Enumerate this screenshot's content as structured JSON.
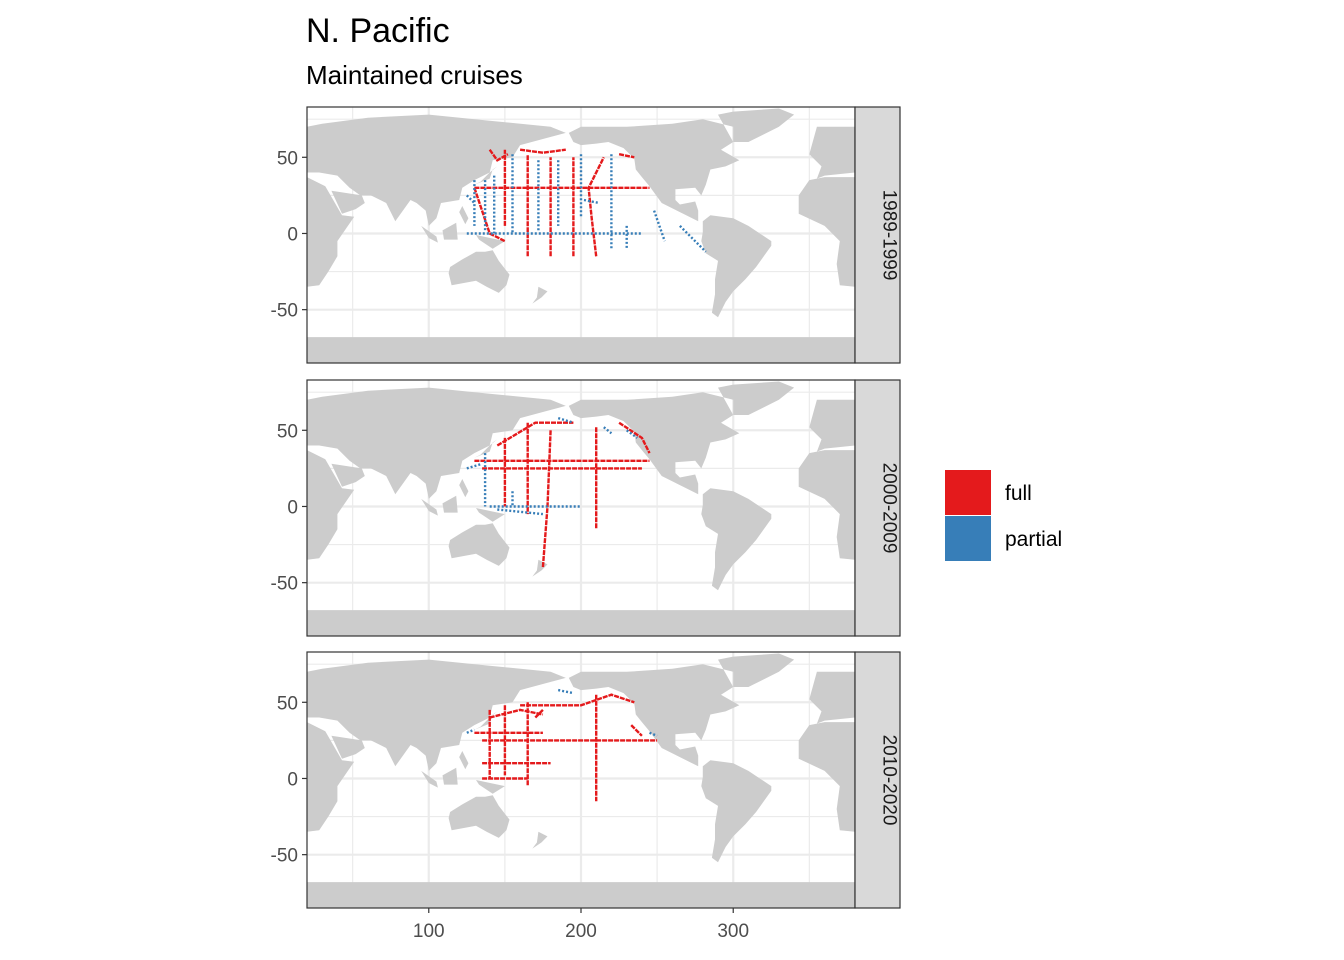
{
  "chart_data": {
    "type": "heatmap",
    "title": "N. Pacific",
    "subtitle": "Maintained cruises",
    "xlabel": "",
    "ylabel": "",
    "xlim": [
      20,
      380
    ],
    "ylim": [
      -85,
      83
    ],
    "x_ticks": [
      100,
      200,
      300
    ],
    "y_ticks": [
      50,
      0,
      -50
    ],
    "grid": true,
    "legend_position": "right",
    "legend": [
      {
        "name": "full",
        "color": "#e41a1c"
      },
      {
        "name": "partial",
        "color": "#377eb8"
      }
    ],
    "colors": {
      "land": "#cccccc",
      "grid": "#ebebeb",
      "strip": "#d9d9d9",
      "border": "#333333"
    },
    "panels": [
      {
        "label": "1989-1999",
        "tracks": [
          {
            "class": "full",
            "points": [
              [
                130,
                30
              ],
              [
                245,
                30
              ]
            ]
          },
          {
            "class": "full",
            "points": [
              [
                150,
                5
              ],
              [
                150,
                55
              ]
            ]
          },
          {
            "class": "full",
            "points": [
              [
                165,
                -15
              ],
              [
                165,
                52
              ]
            ]
          },
          {
            "class": "full",
            "points": [
              [
                180,
                -15
              ],
              [
                180,
                50
              ]
            ]
          },
          {
            "class": "full",
            "points": [
              [
                195,
                -15
              ],
              [
                195,
                50
              ]
            ]
          },
          {
            "class": "full",
            "points": [
              [
                210,
                -15
              ],
              [
                207,
                10
              ],
              [
                205,
                30
              ],
              [
                215,
                50
              ]
            ]
          },
          {
            "class": "full",
            "points": [
              [
                140,
                55
              ],
              [
                145,
                48
              ],
              [
                152,
                52
              ]
            ]
          },
          {
            "class": "full",
            "points": [
              [
                160,
                55
              ],
              [
                175,
                53
              ],
              [
                190,
                55
              ]
            ]
          },
          {
            "class": "full",
            "points": [
              [
                225,
                52
              ],
              [
                235,
                50
              ]
            ]
          },
          {
            "class": "full",
            "points": [
              [
                130,
                30
              ],
              [
                140,
                0
              ],
              [
                150,
                -5
              ]
            ]
          },
          {
            "class": "partial",
            "points": [
              [
                130,
                35
              ],
              [
                130,
                5
              ]
            ]
          },
          {
            "class": "partial",
            "points": [
              [
                137,
                35
              ],
              [
                137,
                2
              ]
            ]
          },
          {
            "class": "partial",
            "points": [
              [
                143,
                38
              ],
              [
                143,
                0
              ]
            ]
          },
          {
            "class": "partial",
            "points": [
              [
                155,
                52
              ],
              [
                155,
                0
              ]
            ]
          },
          {
            "class": "partial",
            "points": [
              [
                172,
                48
              ],
              [
                172,
                2
              ]
            ]
          },
          {
            "class": "partial",
            "points": [
              [
                185,
                48
              ],
              [
                185,
                5
              ]
            ]
          },
          {
            "class": "partial",
            "points": [
              [
                200,
                52
              ],
              [
                200,
                10
              ]
            ]
          },
          {
            "class": "partial",
            "points": [
              [
                125,
                0
              ],
              [
                240,
                0
              ]
            ]
          },
          {
            "class": "partial",
            "points": [
              [
                220,
                52
              ],
              [
                220,
                -10
              ]
            ]
          },
          {
            "class": "partial",
            "points": [
              [
                230,
                5
              ],
              [
                230,
                -10
              ]
            ]
          },
          {
            "class": "partial",
            "points": [
              [
                248,
                15
              ],
              [
                255,
                -5
              ]
            ]
          },
          {
            "class": "partial",
            "points": [
              [
                265,
                5
              ],
              [
                282,
                -12
              ]
            ]
          },
          {
            "class": "partial",
            "points": [
              [
                202,
                22
              ],
              [
                212,
                20
              ]
            ]
          },
          {
            "class": "partial",
            "points": [
              [
                125,
                25
              ],
              [
                130,
                20
              ]
            ]
          }
        ]
      },
      {
        "label": "2000-2009",
        "tracks": [
          {
            "class": "full",
            "points": [
              [
                130,
                30
              ],
              [
                245,
                30
              ]
            ]
          },
          {
            "class": "full",
            "points": [
              [
                135,
                25
              ],
              [
                240,
                25
              ]
            ]
          },
          {
            "class": "full",
            "points": [
              [
                150,
                45
              ],
              [
                150,
                0
              ]
            ]
          },
          {
            "class": "full",
            "points": [
              [
                165,
                55
              ],
              [
                165,
                -5
              ]
            ]
          },
          {
            "class": "full",
            "points": [
              [
                180,
                50
              ],
              [
                178,
                0
              ],
              [
                175,
                -40
              ]
            ]
          },
          {
            "class": "full",
            "points": [
              [
                210,
                52
              ],
              [
                210,
                -15
              ]
            ]
          },
          {
            "class": "full",
            "points": [
              [
                145,
                40
              ],
              [
                170,
                55
              ],
              [
                195,
                55
              ]
            ]
          },
          {
            "class": "full",
            "points": [
              [
                225,
                55
              ],
              [
                240,
                45
              ],
              [
                245,
                35
              ]
            ]
          },
          {
            "class": "partial",
            "points": [
              [
                137,
                35
              ],
              [
                137,
                0
              ]
            ]
          },
          {
            "class": "partial",
            "points": [
              [
                125,
                25
              ],
              [
                135,
                28
              ]
            ]
          },
          {
            "class": "partial",
            "points": [
              [
                140,
                0
              ],
              [
                200,
                0
              ]
            ]
          },
          {
            "class": "partial",
            "points": [
              [
                155,
                10
              ],
              [
                155,
                0
              ]
            ]
          },
          {
            "class": "partial",
            "points": [
              [
                185,
                58
              ],
              [
                195,
                55
              ]
            ]
          },
          {
            "class": "partial",
            "points": [
              [
                215,
                52
              ],
              [
                220,
                48
              ]
            ]
          },
          {
            "class": "partial",
            "points": [
              [
                230,
                50
              ],
              [
                237,
                45
              ]
            ]
          },
          {
            "class": "partial",
            "points": [
              [
                145,
                -2
              ],
              [
                175,
                -5
              ]
            ]
          }
        ]
      },
      {
        "label": "2010-2020",
        "tracks": [
          {
            "class": "full",
            "points": [
              [
                140,
                45
              ],
              [
                140,
                0
              ]
            ]
          },
          {
            "class": "full",
            "points": [
              [
                150,
                48
              ],
              [
                150,
                2
              ]
            ]
          },
          {
            "class": "full",
            "points": [
              [
                165,
                50
              ],
              [
                165,
                -5
              ]
            ]
          },
          {
            "class": "full",
            "points": [
              [
                210,
                55
              ],
              [
                210,
                -15
              ]
            ]
          },
          {
            "class": "full",
            "points": [
              [
                135,
                25
              ],
              [
                250,
                25
              ]
            ]
          },
          {
            "class": "full",
            "points": [
              [
                130,
                30
              ],
              [
                175,
                30
              ]
            ]
          },
          {
            "class": "full",
            "points": [
              [
                135,
                10
              ],
              [
                180,
                10
              ]
            ]
          },
          {
            "class": "full",
            "points": [
              [
                135,
                0
              ],
              [
                165,
                0
              ]
            ]
          },
          {
            "class": "full",
            "points": [
              [
                160,
                48
              ],
              [
                200,
                48
              ],
              [
                220,
                55
              ],
              [
                235,
                50
              ]
            ]
          },
          {
            "class": "full",
            "points": [
              [
                140,
                40
              ],
              [
                160,
                45
              ],
              [
                175,
                42
              ]
            ]
          },
          {
            "class": "full",
            "points": [
              [
                170,
                40
              ],
              [
                175,
                45
              ]
            ]
          },
          {
            "class": "full",
            "points": [
              [
                233,
                35
              ],
              [
                240,
                28
              ]
            ]
          },
          {
            "class": "partial",
            "points": [
              [
                185,
                58
              ],
              [
                195,
                56
              ]
            ]
          },
          {
            "class": "partial",
            "points": [
              [
                245,
                30
              ],
              [
                250,
                28
              ]
            ]
          },
          {
            "class": "partial",
            "points": [
              [
                125,
                30
              ],
              [
                130,
                32
              ]
            ]
          }
        ]
      }
    ]
  }
}
